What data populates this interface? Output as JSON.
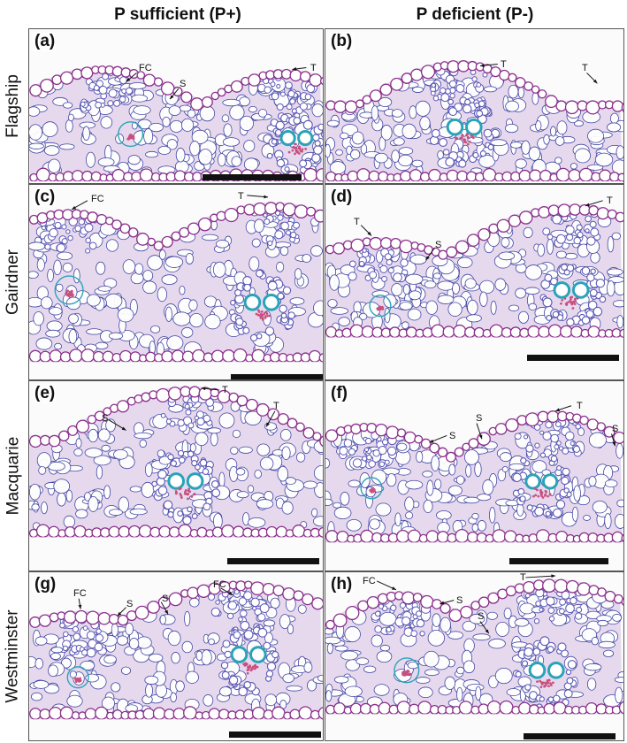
{
  "columns": [
    {
      "label": "P sufficient (P+)"
    },
    {
      "label": "P deficient (P-)"
    }
  ],
  "rows": [
    {
      "label": "Flagship"
    },
    {
      "label": "Gairdner"
    },
    {
      "label": "Macquarie"
    },
    {
      "label": "Westminster"
    }
  ],
  "panels": [
    {
      "letter": "(a)",
      "annotations": [
        {
          "text": "FC"
        },
        {
          "text": "S"
        },
        {
          "text": "T"
        }
      ]
    },
    {
      "letter": "(b)",
      "annotations": [
        {
          "text": "T"
        },
        {
          "text": "T"
        }
      ]
    },
    {
      "letter": "(c)",
      "annotations": [
        {
          "text": "FC"
        },
        {
          "text": "T"
        }
      ]
    },
    {
      "letter": "(d)",
      "annotations": [
        {
          "text": "T"
        },
        {
          "text": "S"
        },
        {
          "text": "T"
        }
      ]
    },
    {
      "letter": "(e)",
      "annotations": [
        {
          "text": "T"
        },
        {
          "text": "S"
        },
        {
          "text": "T"
        }
      ]
    },
    {
      "letter": "(f)",
      "annotations": [
        {
          "text": "T"
        },
        {
          "text": "S"
        },
        {
          "text": "S"
        },
        {
          "text": "S"
        }
      ]
    },
    {
      "letter": "(g)",
      "annotations": [
        {
          "text": "FC"
        },
        {
          "text": "S"
        },
        {
          "text": "S"
        },
        {
          "text": "FC"
        }
      ]
    },
    {
      "letter": "(h)",
      "annotations": [
        {
          "text": "FC"
        },
        {
          "text": "S"
        },
        {
          "text": "S"
        },
        {
          "text": "T"
        }
      ]
    }
  ],
  "colors": {
    "epidermis": "#8a2f8a",
    "cell_fill": "#ffffff",
    "cell_outline": "#3b3f9e",
    "mesophyll_wash": "#e6d9ee",
    "xylem": "#2aa3b8",
    "phloem": "#c8507f",
    "fibre_cap": "#5b58b5",
    "scale_bar": "#111111"
  }
}
